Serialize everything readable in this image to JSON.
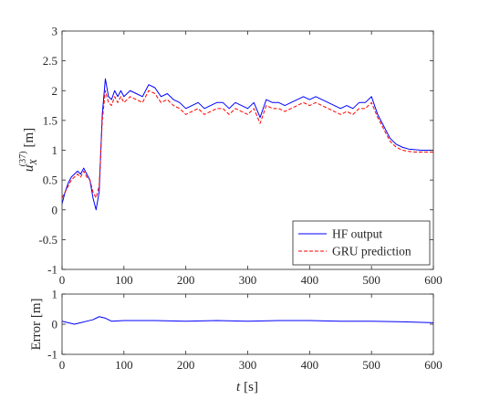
{
  "chart_data": [
    {
      "type": "line",
      "title": "",
      "xlabel": "",
      "ylabel": "u_X^(37) [m]",
      "ylabel_main": "u",
      "ylabel_sub": "X",
      "ylabel_sup": "(37)",
      "ylabel_unit": "[m]",
      "xlim": [
        0,
        600
      ],
      "ylim": [
        -1,
        3
      ],
      "xticks": [
        "0",
        "100",
        "200",
        "300",
        "400",
        "500",
        "600"
      ],
      "yticks": [
        "-1",
        "-0.5",
        "0",
        "0.5",
        "1",
        "1.5",
        "2",
        "2.5",
        "3"
      ],
      "grid": false,
      "legend_position": "bottom-right",
      "series": [
        {
          "name": "HF output",
          "color": "#0000ff",
          "style": "solid",
          "x": [
            0,
            5,
            10,
            15,
            20,
            25,
            30,
            35,
            40,
            45,
            50,
            55,
            60,
            65,
            70,
            75,
            80,
            85,
            90,
            95,
            100,
            110,
            120,
            130,
            140,
            150,
            160,
            170,
            180,
            190,
            200,
            210,
            220,
            230,
            240,
            250,
            260,
            270,
            280,
            290,
            300,
            310,
            320,
            330,
            340,
            350,
            360,
            370,
            380,
            390,
            400,
            410,
            420,
            430,
            440,
            450,
            460,
            470,
            480,
            490,
            500,
            510,
            520,
            530,
            540,
            550,
            560,
            570,
            580,
            590,
            600
          ],
          "y": [
            0.1,
            0.3,
            0.45,
            0.55,
            0.6,
            0.65,
            0.6,
            0.7,
            0.6,
            0.5,
            0.2,
            0.0,
            0.3,
            1.6,
            2.2,
            1.9,
            1.85,
            2.0,
            1.9,
            2.0,
            1.9,
            2.0,
            1.95,
            1.9,
            2.1,
            2.05,
            1.9,
            1.95,
            1.85,
            1.8,
            1.7,
            1.75,
            1.8,
            1.7,
            1.75,
            1.8,
            1.8,
            1.7,
            1.8,
            1.75,
            1.7,
            1.8,
            1.55,
            1.85,
            1.8,
            1.8,
            1.75,
            1.8,
            1.85,
            1.9,
            1.85,
            1.9,
            1.85,
            1.8,
            1.75,
            1.7,
            1.75,
            1.7,
            1.8,
            1.8,
            1.9,
            1.6,
            1.4,
            1.2,
            1.1,
            1.05,
            1.02,
            1.01,
            1.0,
            1.0,
            1.0
          ]
        },
        {
          "name": "GRU prediction",
          "color": "#ff0000",
          "style": "dashed",
          "x": [
            0,
            5,
            10,
            15,
            20,
            25,
            30,
            35,
            40,
            45,
            50,
            55,
            60,
            65,
            70,
            75,
            80,
            85,
            90,
            95,
            100,
            110,
            120,
            130,
            140,
            150,
            160,
            170,
            180,
            190,
            200,
            210,
            220,
            230,
            240,
            250,
            260,
            270,
            280,
            290,
            300,
            310,
            320,
            330,
            340,
            350,
            360,
            370,
            380,
            390,
            400,
            410,
            420,
            430,
            440,
            450,
            460,
            470,
            480,
            490,
            500,
            510,
            520,
            530,
            540,
            550,
            560,
            570,
            580,
            590,
            600
          ],
          "y": [
            0.2,
            0.3,
            0.4,
            0.5,
            0.55,
            0.6,
            0.55,
            0.65,
            0.55,
            0.5,
            0.3,
            0.2,
            0.4,
            1.5,
            2.0,
            1.8,
            1.75,
            1.9,
            1.8,
            1.9,
            1.8,
            1.9,
            1.85,
            1.8,
            2.0,
            1.95,
            1.8,
            1.85,
            1.75,
            1.7,
            1.6,
            1.65,
            1.7,
            1.6,
            1.65,
            1.7,
            1.7,
            1.6,
            1.7,
            1.65,
            1.6,
            1.7,
            1.45,
            1.75,
            1.7,
            1.7,
            1.65,
            1.7,
            1.75,
            1.8,
            1.75,
            1.8,
            1.75,
            1.7,
            1.65,
            1.6,
            1.65,
            1.6,
            1.7,
            1.7,
            1.8,
            1.55,
            1.35,
            1.15,
            1.05,
            1.0,
            0.98,
            0.97,
            0.97,
            0.97,
            0.97
          ]
        }
      ]
    },
    {
      "type": "line",
      "title": "",
      "xlabel": "t [s]",
      "xlabel_var": "t",
      "xlabel_unit": "[s]",
      "ylabel": "Error [m]",
      "xlim": [
        0,
        600
      ],
      "ylim": [
        -1,
        1
      ],
      "xticks": [
        "0",
        "100",
        "200",
        "300",
        "400",
        "500",
        "600"
      ],
      "yticks": [
        "-1",
        "0",
        "1"
      ],
      "grid": false,
      "series": [
        {
          "color": "#0000ff",
          "style": "solid",
          "x": [
            0,
            10,
            20,
            30,
            40,
            50,
            60,
            70,
            80,
            100,
            150,
            200,
            250,
            300,
            350,
            400,
            450,
            500,
            550,
            600
          ],
          "y": [
            0.1,
            0.05,
            0.0,
            0.05,
            0.1,
            0.15,
            0.25,
            0.2,
            0.1,
            0.12,
            0.12,
            0.1,
            0.12,
            0.1,
            0.12,
            0.12,
            0.1,
            0.1,
            0.08,
            0.05
          ]
        }
      ]
    }
  ]
}
